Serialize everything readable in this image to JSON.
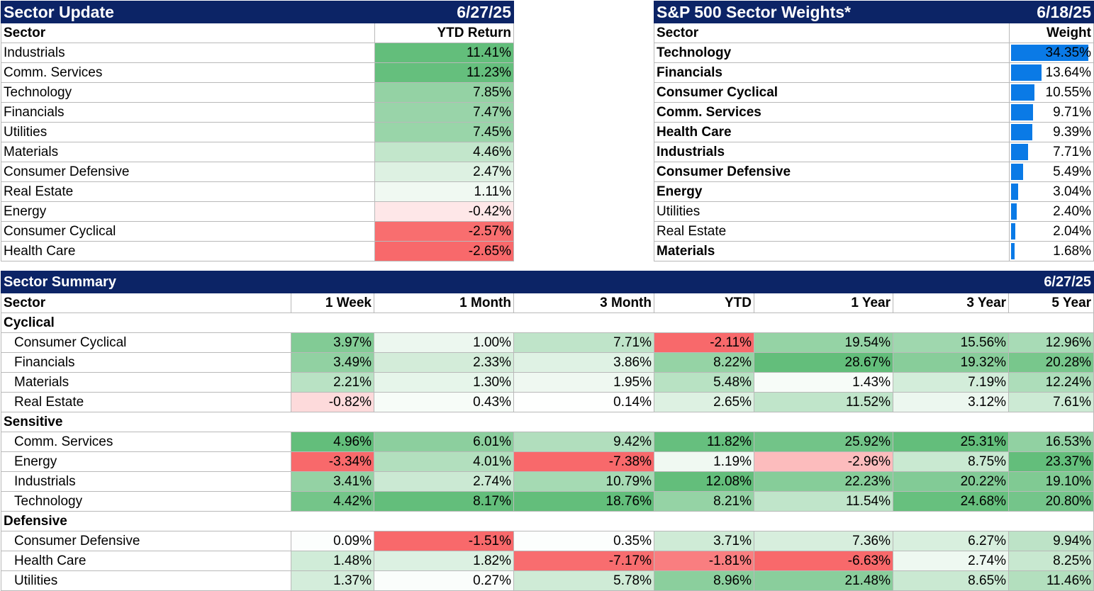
{
  "sector_update": {
    "title": "Sector Update",
    "date": "6/27/25",
    "headers": [
      "Sector",
      "YTD Return"
    ],
    "rows": [
      {
        "sector": "Industrials",
        "ytd": "11.41%"
      },
      {
        "sector": "Comm. Services",
        "ytd": "11.23%"
      },
      {
        "sector": "Technology",
        "ytd": "7.85%"
      },
      {
        "sector": "Financials",
        "ytd": "7.47%"
      },
      {
        "sector": "Utilities",
        "ytd": "7.45%"
      },
      {
        "sector": "Materials",
        "ytd": "4.46%"
      },
      {
        "sector": "Consumer Defensive",
        "ytd": "2.47%"
      },
      {
        "sector": "Real Estate",
        "ytd": "1.11%"
      },
      {
        "sector": "Energy",
        "ytd": "-0.42%"
      },
      {
        "sector": "Consumer Cyclical",
        "ytd": "-2.57%"
      },
      {
        "sector": "Health Care",
        "ytd": "-2.65%"
      }
    ]
  },
  "sector_weights": {
    "title": "S&P 500 Sector Weights*",
    "date": "6/18/25",
    "headers": [
      "Sector",
      "Weight"
    ],
    "bar_color": "#0a7ae6",
    "rows": [
      {
        "sector": "Technology",
        "weight": "34.35%",
        "bold": true
      },
      {
        "sector": "Financials",
        "weight": "13.64%",
        "bold": true
      },
      {
        "sector": "Consumer Cyclical",
        "weight": "10.55%",
        "bold": true
      },
      {
        "sector": "Comm. Services",
        "weight": "9.71%",
        "bold": true
      },
      {
        "sector": "Health Care",
        "weight": "9.39%",
        "bold": true
      },
      {
        "sector": "Industrials",
        "weight": "7.71%",
        "bold": true
      },
      {
        "sector": "Consumer Defensive",
        "weight": "5.49%",
        "bold": true
      },
      {
        "sector": "Energy",
        "weight": "3.04%",
        "bold": true
      },
      {
        "sector": "Utilities",
        "weight": "2.40%",
        "bold": false
      },
      {
        "sector": "Real Estate",
        "weight": "2.04%",
        "bold": false
      },
      {
        "sector": "Materials",
        "weight": "1.68%",
        "bold": true
      }
    ]
  },
  "sector_summary": {
    "title": "Sector Summary",
    "date": "6/27/25",
    "headers": [
      "Sector",
      "1 Week",
      "1 Month",
      "3 Month",
      "YTD",
      "1 Year",
      "3 Year",
      "5 Year"
    ],
    "groups": [
      {
        "name": "Cyclical",
        "rows": [
          {
            "sector": "Consumer Cyclical",
            "values": [
              "3.97%",
              "1.00%",
              "7.71%",
              "-2.11%",
              "19.54%",
              "15.56%",
              "12.96%"
            ]
          },
          {
            "sector": "Financials",
            "values": [
              "3.49%",
              "2.33%",
              "3.86%",
              "8.22%",
              "28.67%",
              "19.32%",
              "20.28%"
            ]
          },
          {
            "sector": "Materials",
            "values": [
              "2.21%",
              "1.30%",
              "1.95%",
              "5.48%",
              "1.43%",
              "7.19%",
              "12.24%"
            ]
          },
          {
            "sector": "Real Estate",
            "values": [
              "-0.82%",
              "0.43%",
              "0.14%",
              "2.65%",
              "11.52%",
              "3.12%",
              "7.61%"
            ]
          }
        ]
      },
      {
        "name": "Sensitive",
        "rows": [
          {
            "sector": "Comm. Services",
            "values": [
              "4.96%",
              "6.01%",
              "9.42%",
              "11.82%",
              "25.92%",
              "25.31%",
              "16.53%"
            ]
          },
          {
            "sector": "Energy",
            "values": [
              "-3.34%",
              "4.01%",
              "-7.38%",
              "1.19%",
              "-2.96%",
              "8.75%",
              "23.37%"
            ]
          },
          {
            "sector": "Industrials",
            "values": [
              "3.41%",
              "2.74%",
              "10.79%",
              "12.08%",
              "22.23%",
              "20.22%",
              "19.10%"
            ]
          },
          {
            "sector": "Technology",
            "values": [
              "4.42%",
              "8.17%",
              "18.76%",
              "8.21%",
              "11.54%",
              "24.68%",
              "20.80%"
            ]
          }
        ]
      },
      {
        "name": "Defensive",
        "rows": [
          {
            "sector": "Consumer Defensive",
            "values": [
              "0.09%",
              "-1.51%",
              "0.35%",
              "3.71%",
              "7.36%",
              "6.27%",
              "9.94%"
            ]
          },
          {
            "sector": "Health Care",
            "values": [
              "1.48%",
              "1.82%",
              "-7.17%",
              "-1.81%",
              "-6.63%",
              "2.74%",
              "8.25%"
            ]
          },
          {
            "sector": "Utilities",
            "values": [
              "1.37%",
              "0.27%",
              "5.78%",
              "8.96%",
              "21.48%",
              "8.65%",
              "11.46%"
            ]
          }
        ]
      }
    ]
  }
}
